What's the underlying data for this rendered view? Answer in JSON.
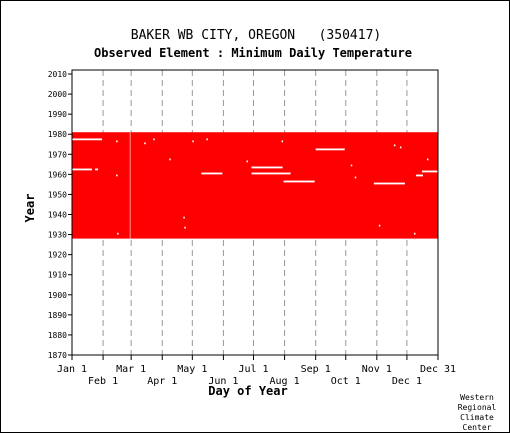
{
  "chart_data": {
    "type": "scatter",
    "title": "BAKER WB CITY, OREGON   (350417)",
    "subtitle": "Observed Element : Minimum Daily Temperature",
    "xlabel": "Day of Year",
    "ylabel": "Year",
    "xlim": [
      1,
      366
    ],
    "ylim": [
      1870,
      2012
    ],
    "y_ticks": [
      1870,
      1880,
      1890,
      1900,
      1910,
      1920,
      1930,
      1940,
      1950,
      1960,
      1970,
      1980,
      1990,
      2000,
      2010
    ],
    "x_ticks_upper": [
      {
        "day": 1,
        "label": "Jan 1"
      },
      {
        "day": 60,
        "label": "Mar 1"
      },
      {
        "day": 121,
        "label": "May 1"
      },
      {
        "day": 182,
        "label": "Jul 1"
      },
      {
        "day": 244,
        "label": "Sep 1"
      },
      {
        "day": 305,
        "label": "Nov 1"
      },
      {
        "day": 366,
        "label": "Dec 31"
      }
    ],
    "x_ticks_lower": [
      {
        "day": 32,
        "label": "Feb 1"
      },
      {
        "day": 91,
        "label": "Apr 1"
      },
      {
        "day": 152,
        "label": "Jun 1"
      },
      {
        "day": 213,
        "label": "Aug 1"
      },
      {
        "day": 274,
        "label": "Oct 1"
      },
      {
        "day": 335,
        "label": "Dec 1"
      }
    ],
    "grid": true,
    "data_color": "#ff0000",
    "missing_color": "#ffffff",
    "data_years": [
      1928,
      1980
    ],
    "missing_data": [
      {
        "year": 1977,
        "day_start": 1,
        "day_end": 30
      },
      {
        "year": 1962,
        "day_start": 1,
        "day_end": 20
      },
      {
        "year": 1962,
        "day_start": 24,
        "day_end": 26
      },
      {
        "year": 1976,
        "day_start": 45,
        "day_end": 45
      },
      {
        "year": 1959,
        "day_start": 45,
        "day_end": 45
      },
      {
        "year": 1930,
        "day_start": 46,
        "day_end": 46
      },
      {
        "year": 1975,
        "day_start": 73,
        "day_end": 73
      },
      {
        "year": 1977,
        "day_start": 82,
        "day_end": 82
      },
      {
        "year": 1967,
        "day_start": 98,
        "day_end": 98
      },
      {
        "year": 1938,
        "day_start": 112,
        "day_end": 112
      },
      {
        "year": 1933,
        "day_start": 113,
        "day_end": 113
      },
      {
        "year": 1976,
        "day_start": 121,
        "day_end": 121
      },
      {
        "year": 1960,
        "day_start": 130,
        "day_end": 150
      },
      {
        "year": 1977,
        "day_start": 135,
        "day_end": 135
      },
      {
        "year": 1966,
        "day_start": 175,
        "day_end": 175
      },
      {
        "year": 1963,
        "day_start": 180,
        "day_end": 210
      },
      {
        "year": 1960,
        "day_start": 180,
        "day_end": 218
      },
      {
        "year": 1976,
        "day_start": 210,
        "day_end": 210
      },
      {
        "year": 1956,
        "day_start": 212,
        "day_end": 242
      },
      {
        "year": 1972,
        "day_start": 244,
        "day_end": 272
      },
      {
        "year": 1964,
        "day_start": 279,
        "day_end": 279
      },
      {
        "year": 1958,
        "day_start": 283,
        "day_end": 283
      },
      {
        "year": 1955,
        "day_start": 302,
        "day_end": 332
      },
      {
        "year": 1934,
        "day_start": 307,
        "day_end": 307
      },
      {
        "year": 1974,
        "day_start": 322,
        "day_end": 322
      },
      {
        "year": 1973,
        "day_start": 328,
        "day_end": 328
      },
      {
        "year": 1959,
        "day_start": 344,
        "day_end": 350
      },
      {
        "year": 1967,
        "day_start": 355,
        "day_end": 355
      },
      {
        "year": 1961,
        "day_start": 350,
        "day_end": 366
      },
      {
        "year": 1930,
        "day_start": 342,
        "day_end": 342
      }
    ]
  },
  "credit": [
    "Western",
    "Regional",
    "Climate",
    "Center"
  ]
}
